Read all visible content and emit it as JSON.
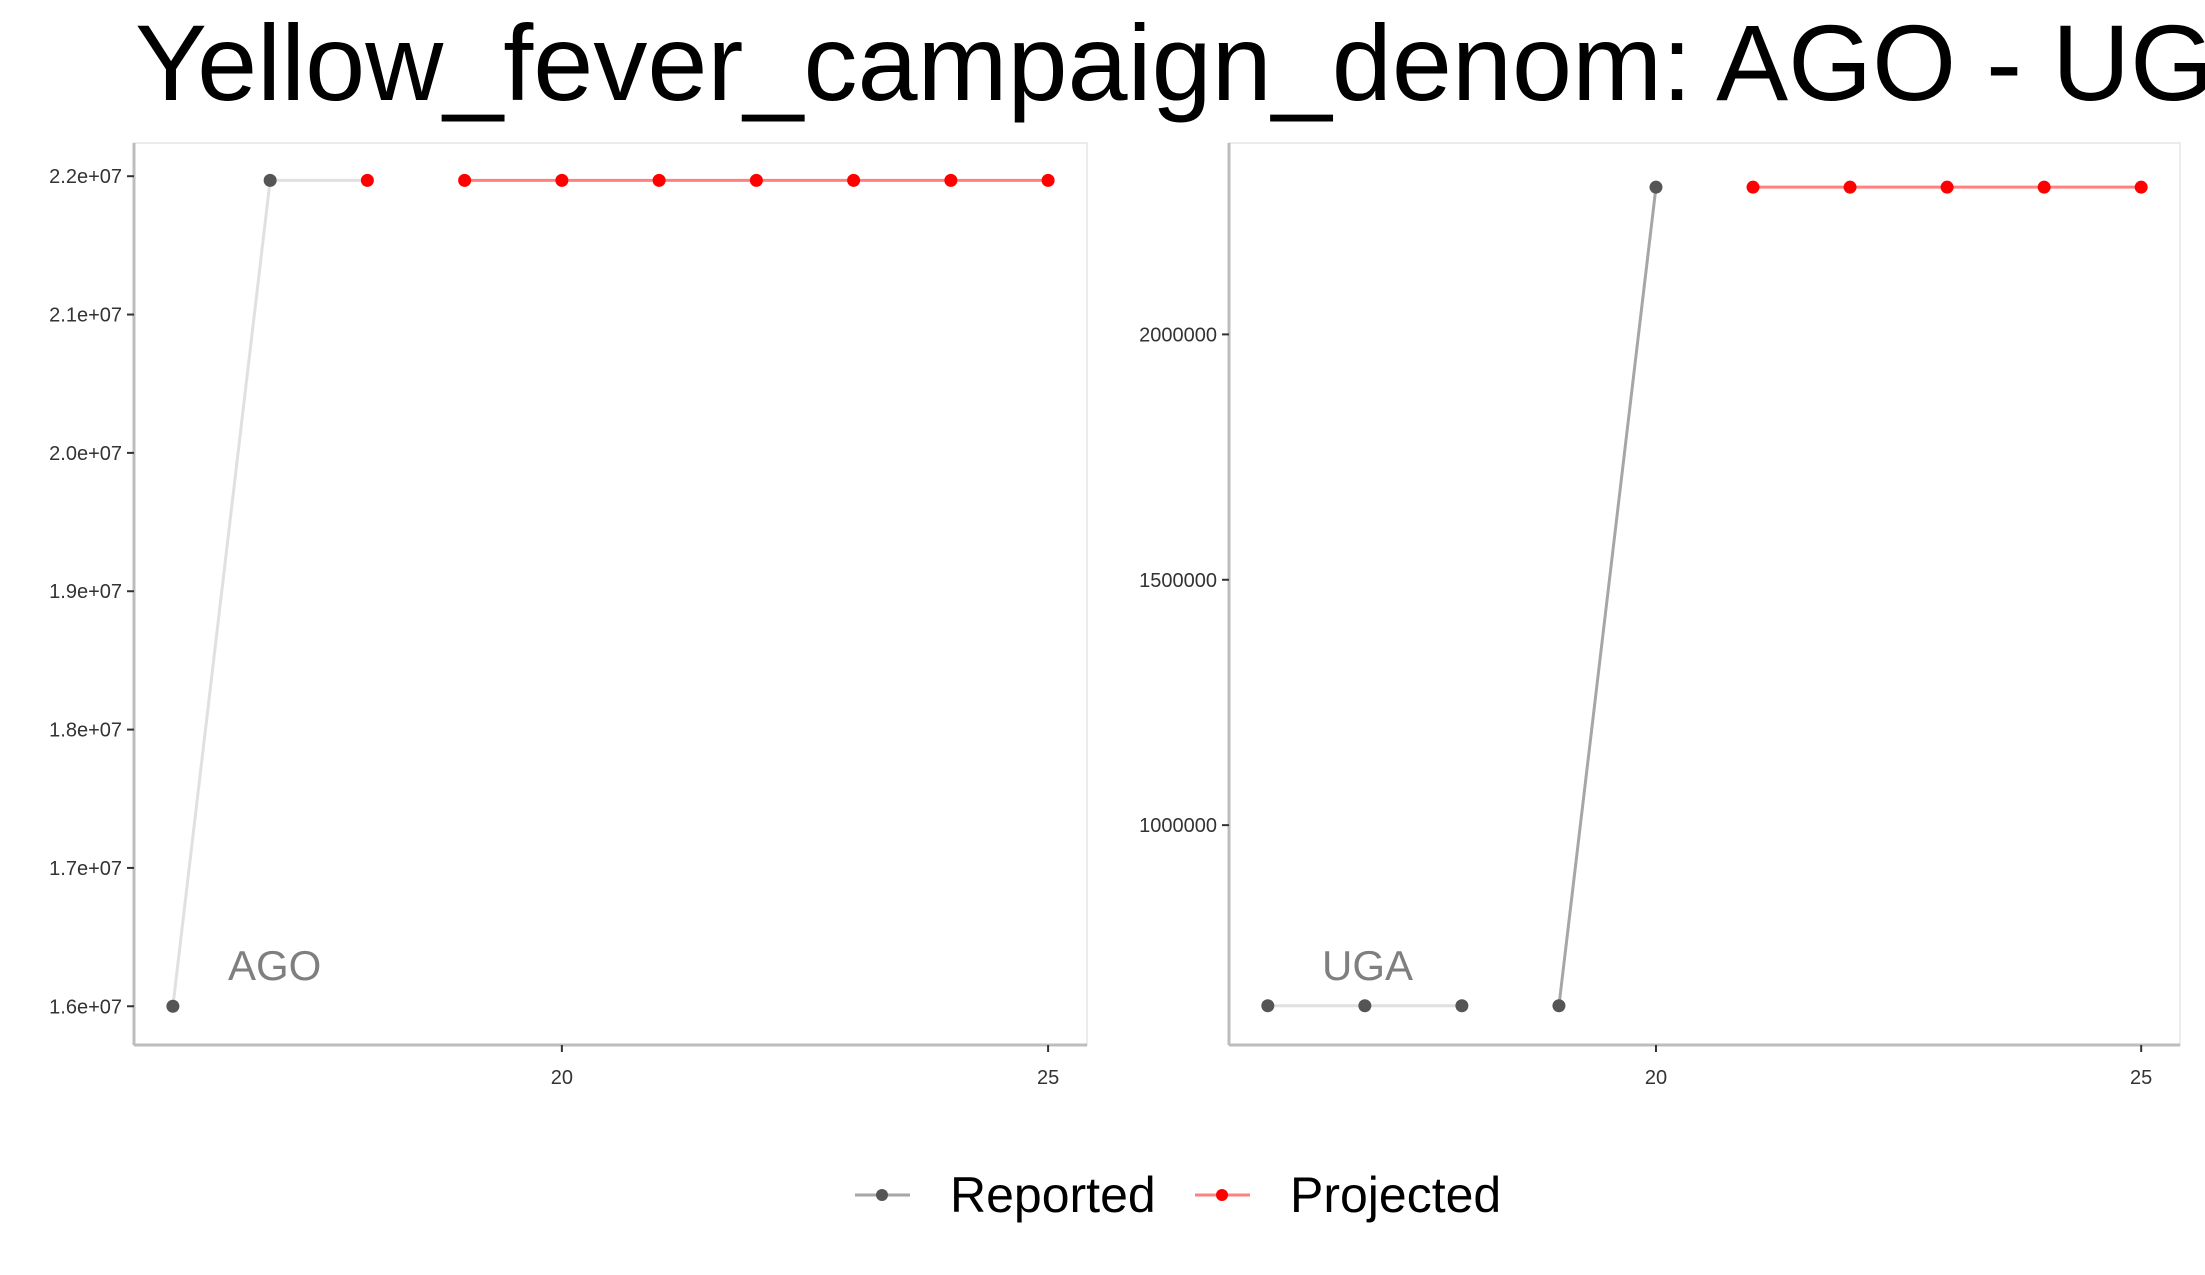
{
  "chart_data": {
    "type": "line",
    "title": "Yellow_fever_campaign_denom: AGO - UGA",
    "legend": {
      "placement": "bottom",
      "entries": [
        {
          "name": "Reported",
          "color": "#555555"
        },
        {
          "name": "Projected",
          "color": "#ff0000"
        }
      ]
    },
    "panels": [
      {
        "label": "AGO",
        "xlim": [
          15.6,
          25.4
        ],
        "ylim": [
          15720000,
          22240000
        ],
        "xticks": [
          20,
          25
        ],
        "xtick_labels": [
          "20",
          "25"
        ],
        "yticks": [
          16000000,
          17000000,
          18000000,
          19000000,
          20000000,
          21000000,
          22000000
        ],
        "ytick_labels": [
          "1.6e+07",
          "1.7e+07",
          "1.8e+07",
          "1.9e+07",
          "2.0e+07",
          "2.1e+07",
          "2.2e+07"
        ],
        "series": [
          {
            "name": "Reported",
            "color": "#555555",
            "points": [
              {
                "x": 16,
                "y": 16000000
              },
              {
                "x": 17,
                "y": 21970000
              }
            ]
          },
          {
            "name": "Projected",
            "color": "#ff0000",
            "points": [
              {
                "x": 18,
                "y": 21970000
              },
              {
                "x": 19,
                "y": 21970000
              },
              {
                "x": 20,
                "y": 21970000
              },
              {
                "x": 21,
                "y": 21970000
              },
              {
                "x": 22,
                "y": 21970000
              },
              {
                "x": 23,
                "y": 21970000
              },
              {
                "x": 24,
                "y": 21970000
              },
              {
                "x": 25,
                "y": 21970000
              }
            ]
          }
        ],
        "segments": [
          {
            "x": [
              16,
              17
            ],
            "y": [
              16000000,
              21970000
            ],
            "color": "#e0e0e0"
          },
          {
            "x": [
              17,
              18
            ],
            "y": [
              21970000,
              21970000
            ],
            "color": "#e0e0e0"
          },
          {
            "x": [
              19,
              25
            ],
            "y": [
              21970000,
              21970000
            ],
            "color": "#ff8080"
          }
        ]
      },
      {
        "label": "UGA",
        "xlim": [
          15.6,
          25.4
        ],
        "ylim": [
          552000,
          2390000
        ],
        "xticks": [
          20,
          25
        ],
        "xtick_labels": [
          "20",
          "25"
        ],
        "yticks": [
          1000000,
          1500000,
          2000000
        ],
        "ytick_labels": [
          "1000000",
          "1500000",
          "2000000"
        ],
        "series": [
          {
            "name": "Reported",
            "color": "#555555",
            "points": [
              {
                "x": 16,
                "y": 632000
              },
              {
                "x": 17,
                "y": 632000
              },
              {
                "x": 18,
                "y": 632000
              },
              {
                "x": 19,
                "y": 632000
              },
              {
                "x": 20,
                "y": 2300000
              }
            ]
          },
          {
            "name": "Projected",
            "color": "#ff0000",
            "points": [
              {
                "x": 21,
                "y": 2300000
              },
              {
                "x": 22,
                "y": 2300000
              },
              {
                "x": 23,
                "y": 2300000
              },
              {
                "x": 24,
                "y": 2300000
              },
              {
                "x": 25,
                "y": 2300000
              }
            ]
          }
        ],
        "segments": [
          {
            "x": [
              16,
              18
            ],
            "y": [
              632000,
              632000
            ],
            "color": "#e0e0e0"
          },
          {
            "x": [
              19,
              20
            ],
            "y": [
              632000,
              2300000
            ],
            "color": "#a6a6a6"
          },
          {
            "x": [
              21,
              25
            ],
            "y": [
              2300000,
              2300000
            ],
            "color": "#ff8080"
          }
        ]
      }
    ]
  }
}
